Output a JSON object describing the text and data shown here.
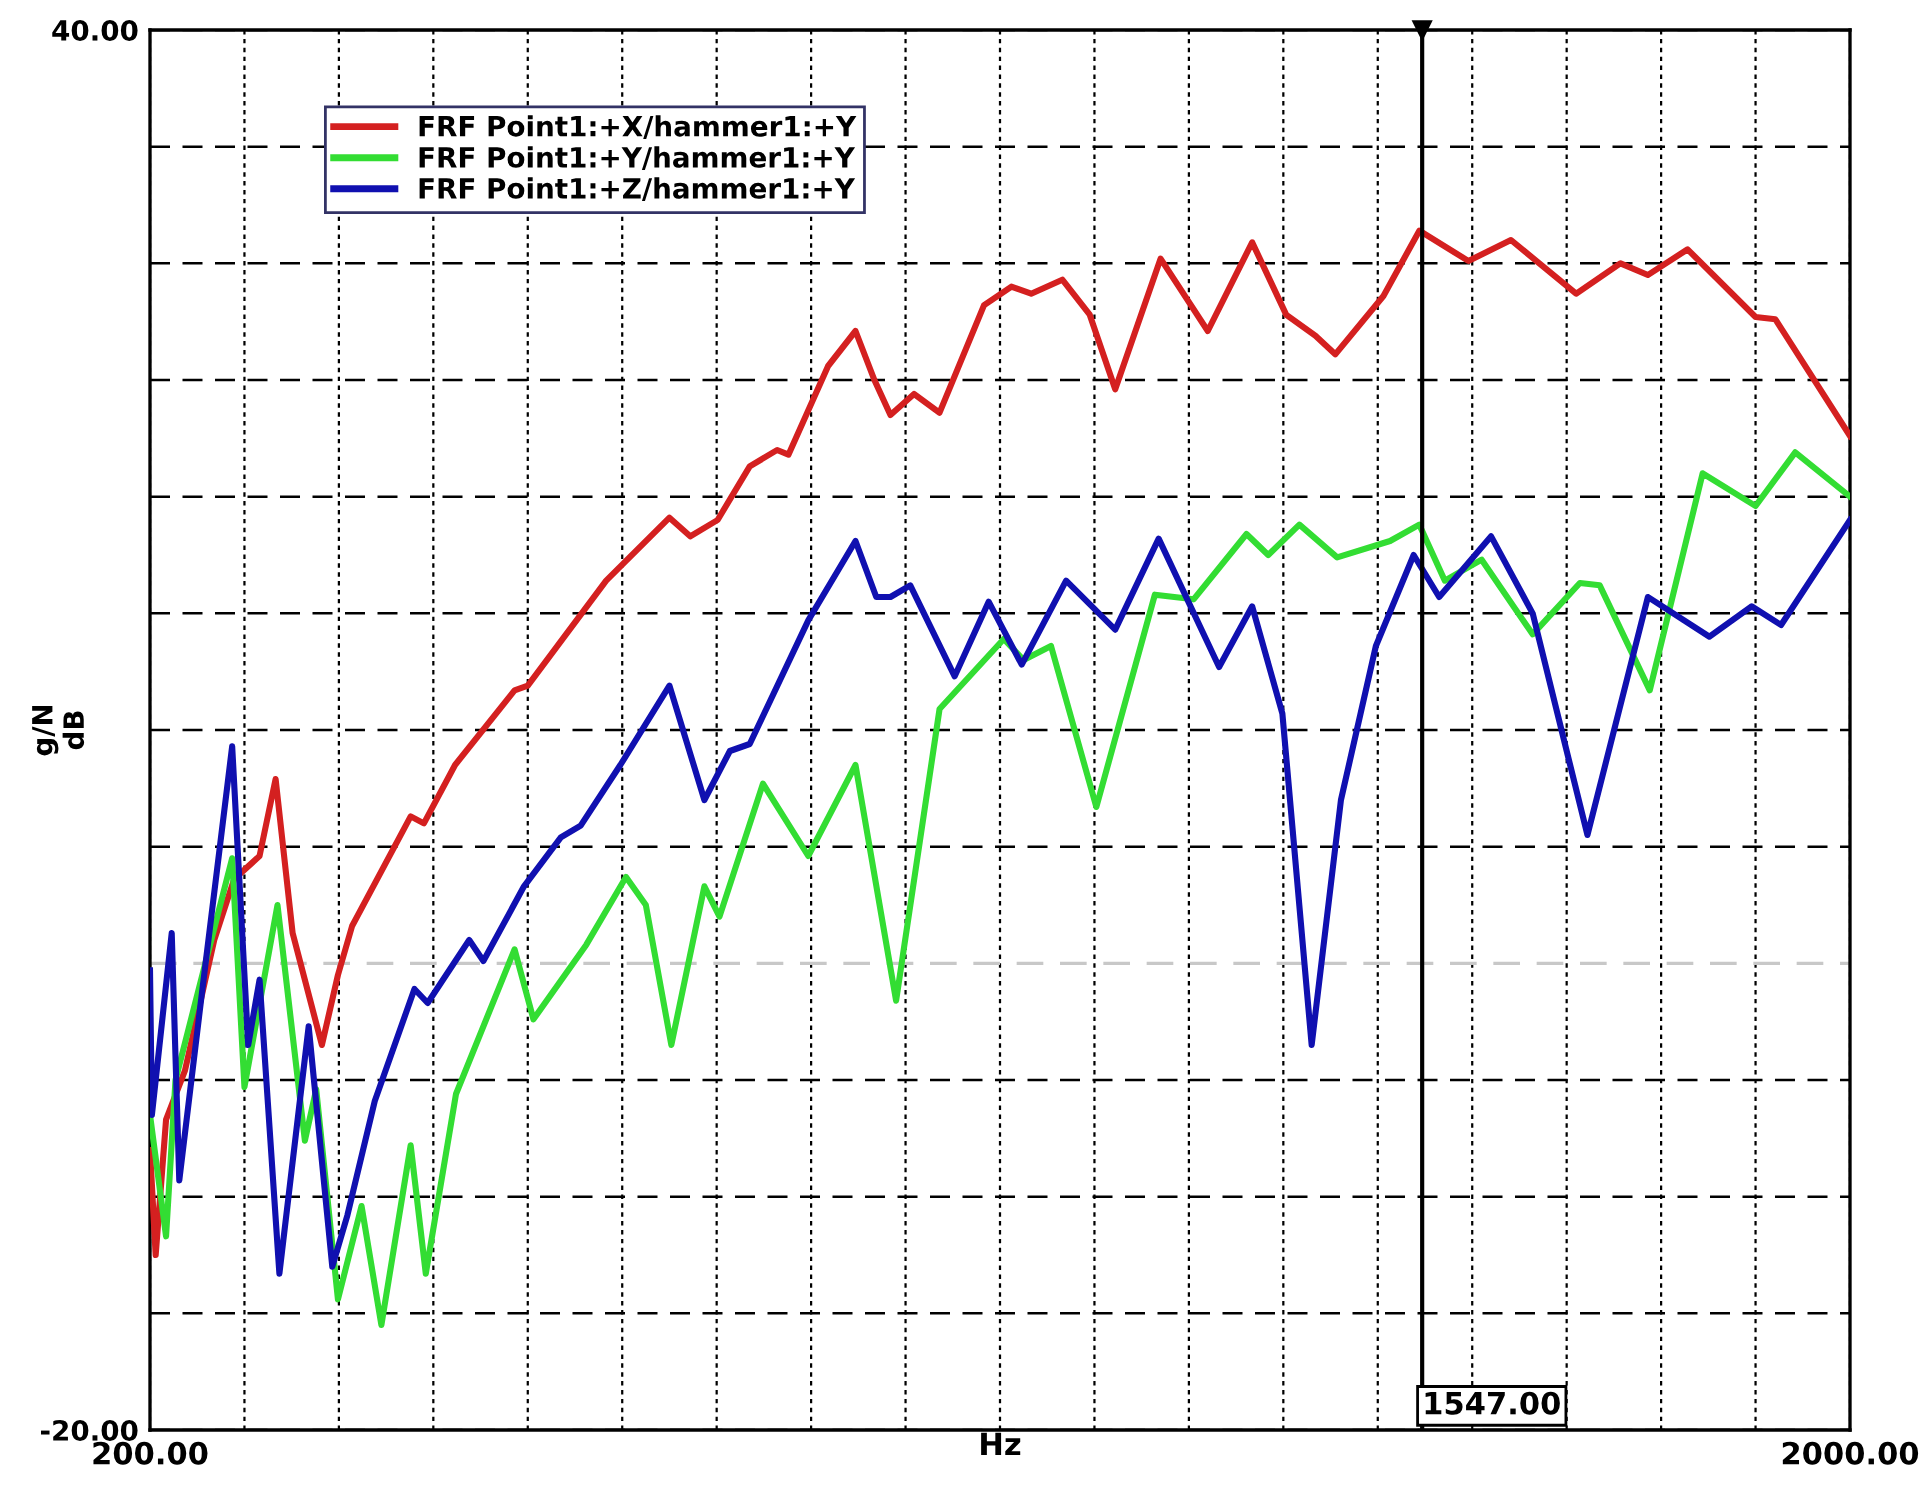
{
  "chart_data": {
    "type": "line",
    "xlabel": "Hz",
    "ylabel": "g/N\ndB",
    "xlim": [
      200,
      2000
    ],
    "ylim": [
      -20,
      40
    ],
    "xticks": [
      {
        "value": 200,
        "label": "200.00"
      },
      {
        "value": 300,
        "label": null
      },
      {
        "value": 400,
        "label": null
      },
      {
        "value": 500,
        "label": null
      },
      {
        "value": 600,
        "label": null
      },
      {
        "value": 700,
        "label": null
      },
      {
        "value": 800,
        "label": null
      },
      {
        "value": 900,
        "label": null
      },
      {
        "value": 1000,
        "label": null
      },
      {
        "value": 1100,
        "label": null
      },
      {
        "value": 1200,
        "label": null
      },
      {
        "value": 1300,
        "label": null
      },
      {
        "value": 1400,
        "label": null
      },
      {
        "value": 1500,
        "label": null
      },
      {
        "value": 1600,
        "label": null
      },
      {
        "value": 1700,
        "label": null
      },
      {
        "value": 1800,
        "label": null
      },
      {
        "value": 1900,
        "label": null
      },
      {
        "value": 2000,
        "label": "2000.00"
      }
    ],
    "yticks": [
      {
        "value": -20,
        "label": "-20.00"
      },
      {
        "value": -15,
        "label": null
      },
      {
        "value": -10,
        "label": null
      },
      {
        "value": -5,
        "label": null
      },
      {
        "value": 0,
        "label": null
      },
      {
        "value": 5,
        "label": null
      },
      {
        "value": 10,
        "label": null
      },
      {
        "value": 15,
        "label": null
      },
      {
        "value": 20,
        "label": null
      },
      {
        "value": 25,
        "label": null
      },
      {
        "value": 30,
        "label": null
      },
      {
        "value": 35,
        "label": null
      },
      {
        "value": 40,
        "label": "40.00"
      }
    ],
    "grid": true,
    "legend": "top left",
    "line_style": "solid",
    "ref_lines": [
      {
        "axis": "x",
        "value": 1547,
        "label": "1547.00",
        "color": "#000000",
        "line_style": "solid"
      },
      {
        "axis": "y",
        "value": 0,
        "label": null,
        "color": "#c8c8c8",
        "line_style": "dashed"
      }
    ],
    "series": [
      {
        "name": "FRF Point1:+X/hammer1:+Y",
        "color": "#d42020",
        "x": [
          200,
          206,
          217,
          237,
          268,
          289,
          316,
          333,
          351,
          382,
          399,
          414,
          476,
          490,
          523,
          586,
          600,
          683,
          750,
          772,
          801,
          835,
          864,
          876,
          918,
          947,
          967,
          984,
          1009,
          1036,
          1083,
          1112,
          1133,
          1166,
          1195,
          1222,
          1270,
          1320,
          1367,
          1403,
          1434,
          1455,
          1506,
          1544,
          1596,
          1641,
          1710,
          1757,
          1786,
          1828,
          1900,
          1921,
          2000
        ],
        "values": [
          -8.0,
          -12.5,
          -6.7,
          -4.6,
          1.0,
          3.6,
          4.6,
          7.9,
          1.3,
          -3.5,
          -0.5,
          1.6,
          6.3,
          6.0,
          8.5,
          11.7,
          11.9,
          16.4,
          19.1,
          18.3,
          19.0,
          21.3,
          22.0,
          21.8,
          25.6,
          27.1,
          25.0,
          23.5,
          24.4,
          23.6,
          28.2,
          29.0,
          28.7,
          29.3,
          27.8,
          24.6,
          30.2,
          27.1,
          30.9,
          27.8,
          26.9,
          26.1,
          28.6,
          31.4,
          30.1,
          31.0,
          28.7,
          30.0,
          29.5,
          30.6,
          27.7,
          27.6,
          22.6
        ]
      },
      {
        "name": "FRF Point1:+Y/hammer1:+Y",
        "color": "#33dd33",
        "x": [
          200,
          217,
          227,
          287,
          300,
          335,
          364,
          376,
          399,
          424,
          445,
          476,
          492,
          524,
          586,
          606,
          662,
          704,
          725,
          752,
          787,
          803,
          849,
          897,
          947,
          990,
          1036,
          1104,
          1125,
          1154,
          1202,
          1264,
          1305,
          1361,
          1384,
          1417,
          1457,
          1513,
          1544,
          1571,
          1610,
          1664,
          1714,
          1735,
          1788,
          1844,
          1900,
          1942,
          2000
        ],
        "values": [
          -6.5,
          -11.7,
          -5.0,
          4.5,
          -5.3,
          2.5,
          -7.6,
          -5.4,
          -14.4,
          -10.4,
          -15.5,
          -7.8,
          -13.3,
          -5.6,
          0.6,
          -2.4,
          0.8,
          3.7,
          2.5,
          -3.5,
          3.3,
          2.0,
          7.7,
          4.6,
          8.5,
          -1.6,
          10.9,
          13.9,
          13.0,
          13.6,
          6.7,
          15.8,
          15.6,
          18.4,
          17.5,
          18.8,
          17.4,
          18.1,
          18.8,
          16.4,
          17.3,
          14.1,
          16.3,
          16.2,
          11.7,
          21.0,
          19.6,
          21.9,
          20.0
        ]
      },
      {
        "name": "FRF Point1:+Z/hammer1:+Y",
        "color": "#1010b0",
        "x": [
          200,
          202,
          223,
          231,
          254,
          287,
          304,
          316,
          337,
          368,
          393,
          409,
          438,
          480,
          494,
          538,
          553,
          596,
          635,
          656,
          698,
          750,
          787,
          814,
          835,
          897,
          947,
          969,
          984,
          1005,
          1052,
          1088,
          1123,
          1170,
          1222,
          1268,
          1332,
          1367,
          1399,
          1430,
          1461,
          1498,
          1538,
          1565,
          1620,
          1664,
          1722,
          1786,
          1851,
          1896,
          1927,
          2000
        ],
        "values": [
          -0.3,
          -6.5,
          1.3,
          -9.3,
          -1.6,
          9.3,
          -3.5,
          -0.7,
          -13.3,
          -2.7,
          -13.0,
          -10.8,
          -5.9,
          -1.1,
          -1.7,
          1.0,
          0.1,
          3.3,
          5.4,
          5.9,
          8.5,
          11.9,
          7.0,
          9.1,
          9.4,
          14.7,
          18.1,
          15.7,
          15.7,
          16.2,
          12.3,
          15.5,
          12.8,
          16.4,
          14.3,
          18.2,
          12.7,
          15.3,
          10.7,
          -3.5,
          7.0,
          13.6,
          17.5,
          15.7,
          18.3,
          15.0,
          5.5,
          15.7,
          14.0,
          15.3,
          14.5,
          19.0
        ]
      }
    ]
  }
}
